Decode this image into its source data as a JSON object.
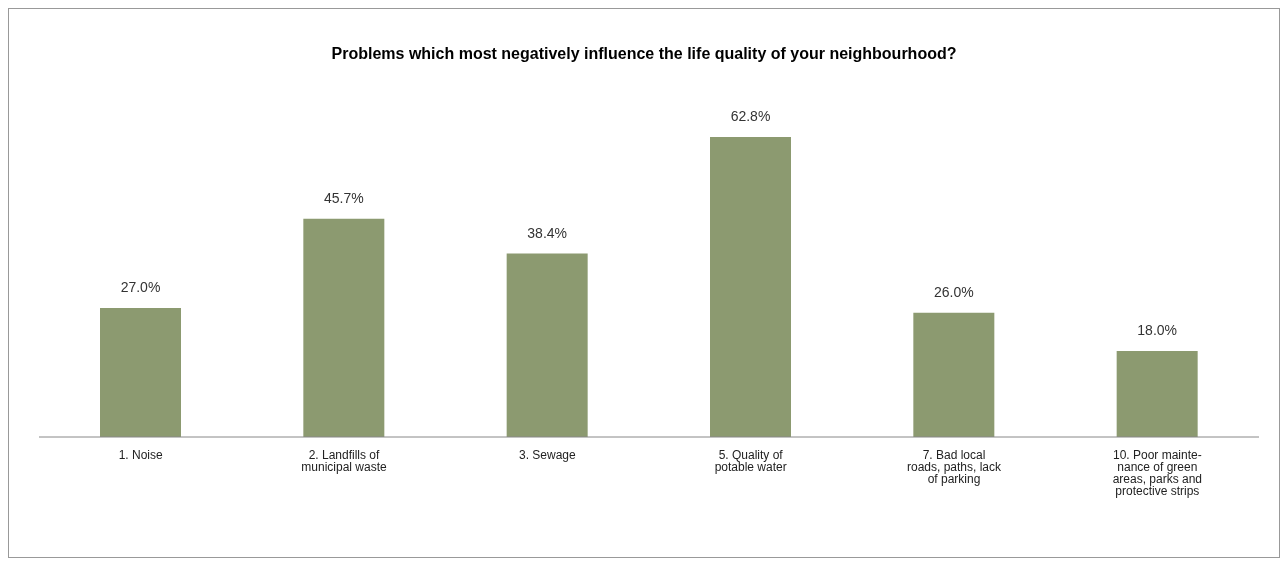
{
  "chart_data": {
    "type": "bar",
    "title": "Problems which most negatively influence the life quality of your neighbourhood?",
    "categories": [
      "1. Noise",
      "2. Landfills of municipal waste",
      "3. Sewage",
      "5. Quality of potable water",
      "7. Bad local roads, paths, lack of parking",
      "10. Poor mainte-nance of green areas, parks and protective strips"
    ],
    "values": [
      27.0,
      45.7,
      38.4,
      62.8,
      26.0,
      18.0
    ],
    "value_labels": [
      "27.0%",
      "45.7%",
      "38.4%",
      "62.8%",
      "26.0%",
      "18.0%"
    ],
    "color": "#8c9a70",
    "grid": false,
    "legend": false
  }
}
